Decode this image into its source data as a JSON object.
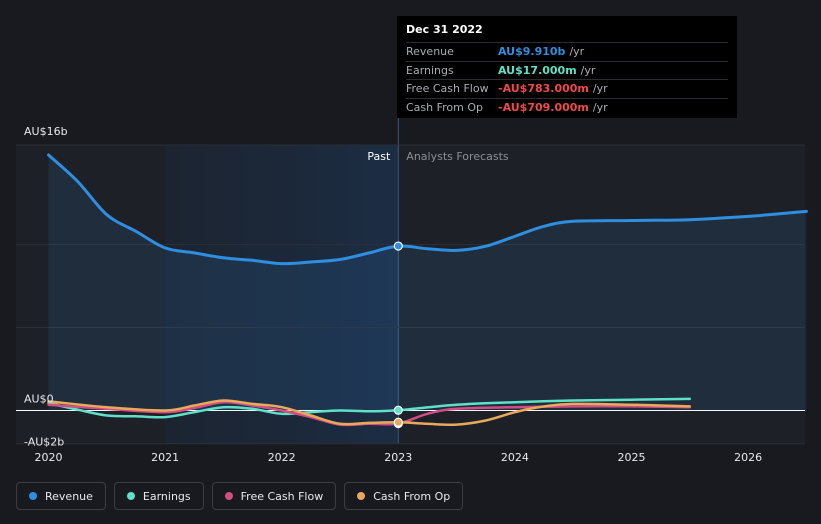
{
  "colors": {
    "revenue": "#2e8ee0",
    "earnings": "#5fe0c8",
    "free_cash_flow": "#d14d84",
    "cash_from_op": "#e8a95a",
    "background": "#181a20",
    "past_region": "#1c2d44",
    "zero_line": "#ffffff",
    "red_value": "#f0494b"
  },
  "sections": {
    "past": "Past",
    "forecast": "Analysts Forecasts"
  },
  "tooltip": {
    "date": "Dec 31 2022",
    "rows": [
      {
        "label": "Revenue",
        "value": "AU$9.910b",
        "unit": "/yr",
        "color": "#2e8ee0"
      },
      {
        "label": "Earnings",
        "value": "AU$17.000m",
        "unit": "/yr",
        "color": "#5fe0c8"
      },
      {
        "label": "Free Cash Flow",
        "value": "-AU$783.000m",
        "unit": "/yr",
        "color": "#f0494b"
      },
      {
        "label": "Cash From Op",
        "value": "-AU$709.000m",
        "unit": "/yr",
        "color": "#f0494b"
      }
    ]
  },
  "legend": [
    {
      "name": "Revenue",
      "icon": "revenue-dot",
      "color": "#2e8ee0"
    },
    {
      "name": "Earnings",
      "icon": "earnings-dot",
      "color": "#5fe0c8"
    },
    {
      "name": "Free Cash Flow",
      "icon": "free-cash-flow-dot",
      "color": "#d14d84"
    },
    {
      "name": "Cash From Op",
      "icon": "cash-from-op-dot",
      "color": "#e8a95a"
    }
  ],
  "chart_data": {
    "type": "line",
    "x_ticks": [
      2020,
      2021,
      2022,
      2023,
      2024,
      2025,
      2026
    ],
    "x_range": [
      2019.75,
      2026.5
    ],
    "y_tick_labels": [
      {
        "value": 16,
        "label": "AU$16b"
      },
      {
        "value": 0,
        "label": "AU$0"
      },
      {
        "value": -2,
        "label": "-AU$2b"
      }
    ],
    "ylim": [
      -2,
      16
    ],
    "y_unit": "AU$ billions",
    "past_region": [
      2021,
      2023
    ],
    "divider_x": 2023,
    "highlight_x": 2023,
    "grid": true,
    "legend_position": "bottom-left",
    "series": [
      {
        "name": "Revenue",
        "color": "#2e8ee0",
        "points": [
          [
            2020,
            15.4
          ],
          [
            2020.25,
            13.8
          ],
          [
            2020.5,
            11.8
          ],
          [
            2020.75,
            10.8
          ],
          [
            2021,
            9.8
          ],
          [
            2021.25,
            9.5
          ],
          [
            2021.5,
            9.2
          ],
          [
            2021.75,
            9.05
          ],
          [
            2022,
            8.85
          ],
          [
            2022.25,
            8.95
          ],
          [
            2022.5,
            9.1
          ],
          [
            2022.75,
            9.5
          ],
          [
            2023,
            9.91
          ],
          [
            2023.25,
            9.75
          ],
          [
            2023.5,
            9.65
          ],
          [
            2023.75,
            9.9
          ],
          [
            2024,
            10.5
          ],
          [
            2024.25,
            11.1
          ],
          [
            2024.5,
            11.4
          ],
          [
            2025,
            11.45
          ],
          [
            2025.5,
            11.5
          ],
          [
            2026,
            11.7
          ],
          [
            2026.5,
            12.0
          ]
        ]
      },
      {
        "name": "Earnings",
        "color": "#5fe0c8",
        "points": [
          [
            2020,
            0.45
          ],
          [
            2020.25,
            0.05
          ],
          [
            2020.5,
            -0.3
          ],
          [
            2020.75,
            -0.35
          ],
          [
            2021,
            -0.4
          ],
          [
            2021.25,
            -0.1
          ],
          [
            2021.5,
            0.2
          ],
          [
            2021.75,
            0.1
          ],
          [
            2022,
            -0.2
          ],
          [
            2022.25,
            -0.1
          ],
          [
            2022.5,
            0.0
          ],
          [
            2022.75,
            -0.05
          ],
          [
            2023,
            0.017
          ],
          [
            2023.5,
            0.35
          ],
          [
            2024,
            0.5
          ],
          [
            2024.5,
            0.6
          ],
          [
            2025,
            0.65
          ],
          [
            2025.5,
            0.7
          ]
        ]
      },
      {
        "name": "Free Cash Flow",
        "color": "#d14d84",
        "points": [
          [
            2020,
            0.35
          ],
          [
            2020.5,
            0.1
          ],
          [
            2021,
            -0.1
          ],
          [
            2021.25,
            0.15
          ],
          [
            2021.5,
            0.5
          ],
          [
            2021.75,
            0.3
          ],
          [
            2022,
            0.0
          ],
          [
            2022.25,
            -0.4
          ],
          [
            2022.5,
            -0.85
          ],
          [
            2022.75,
            -0.8
          ],
          [
            2023,
            -0.783
          ],
          [
            2023.25,
            -0.2
          ],
          [
            2023.5,
            0.1
          ],
          [
            2024,
            0.2
          ],
          [
            2024.5,
            0.25
          ],
          [
            2025,
            0.25
          ],
          [
            2025.5,
            0.2
          ]
        ]
      },
      {
        "name": "Cash From Op",
        "color": "#e8a95a",
        "points": [
          [
            2020,
            0.55
          ],
          [
            2020.5,
            0.2
          ],
          [
            2021,
            0.0
          ],
          [
            2021.25,
            0.3
          ],
          [
            2021.5,
            0.6
          ],
          [
            2021.75,
            0.4
          ],
          [
            2022,
            0.2
          ],
          [
            2022.25,
            -0.3
          ],
          [
            2022.5,
            -0.8
          ],
          [
            2022.75,
            -0.75
          ],
          [
            2023,
            -0.709
          ],
          [
            2023.25,
            -0.8
          ],
          [
            2023.5,
            -0.85
          ],
          [
            2023.75,
            -0.6
          ],
          [
            2024,
            -0.1
          ],
          [
            2024.25,
            0.25
          ],
          [
            2024.5,
            0.4
          ],
          [
            2025,
            0.35
          ],
          [
            2025.5,
            0.25
          ]
        ]
      }
    ]
  }
}
